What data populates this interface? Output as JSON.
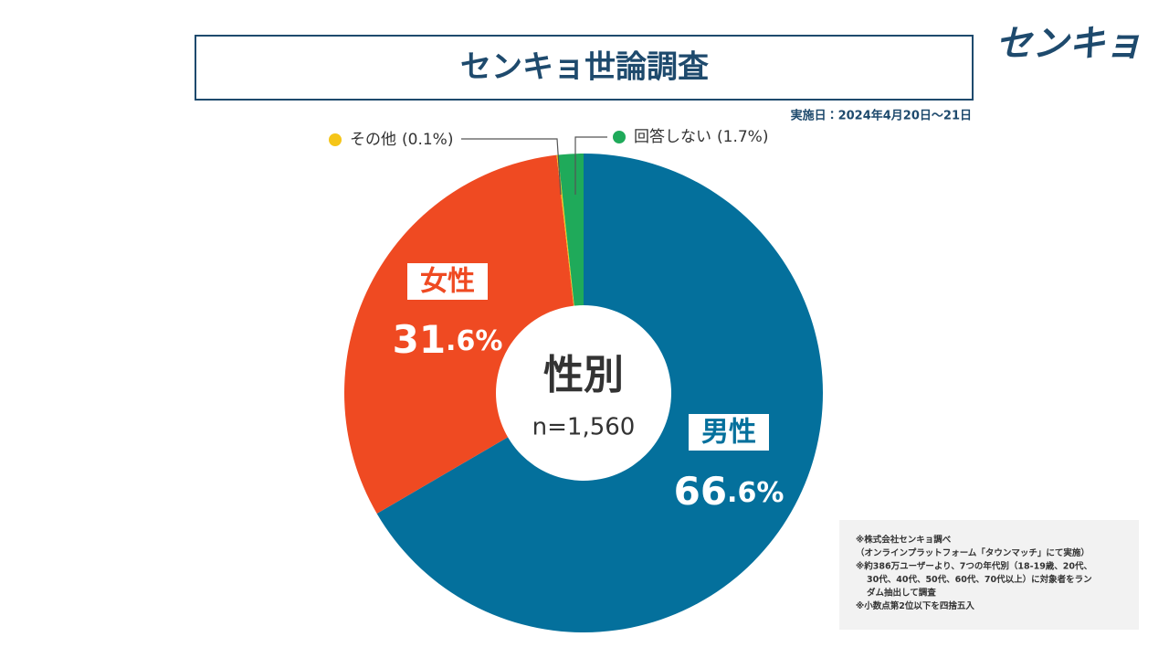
{
  "chart_data": {
    "type": "pie",
    "title": "センキョ世論調査",
    "date": "実施日：2024年4月20日～21日",
    "categories": [
      "男性",
      "女性",
      "その他",
      "回答しない"
    ],
    "values": [
      66.6,
      31.6,
      0.1,
      1.7
    ],
    "value_labels": [
      "66.6%",
      "31.6%",
      "(0.1%)",
      "(1.7%)"
    ],
    "colors": [
      "#04709c",
      "#ef4a22",
      "#f5c518",
      "#1faa5a"
    ],
    "center_label": "性別",
    "center_sublabel": "n=1,560"
  },
  "logo": "センキョ",
  "notes": [
    "※株式会社センキョ調べ",
    "（オンラインプラットフォーム「タウンマッチ」にて実施）",
    "※約386万ユーザーより、7つの年代別（18-19歳、20代、",
    "30代、40代、50代、60代、70代以上）に対象者をラン",
    "ダム抽出して調査",
    "※小数点第2位以下を四捨五入"
  ]
}
